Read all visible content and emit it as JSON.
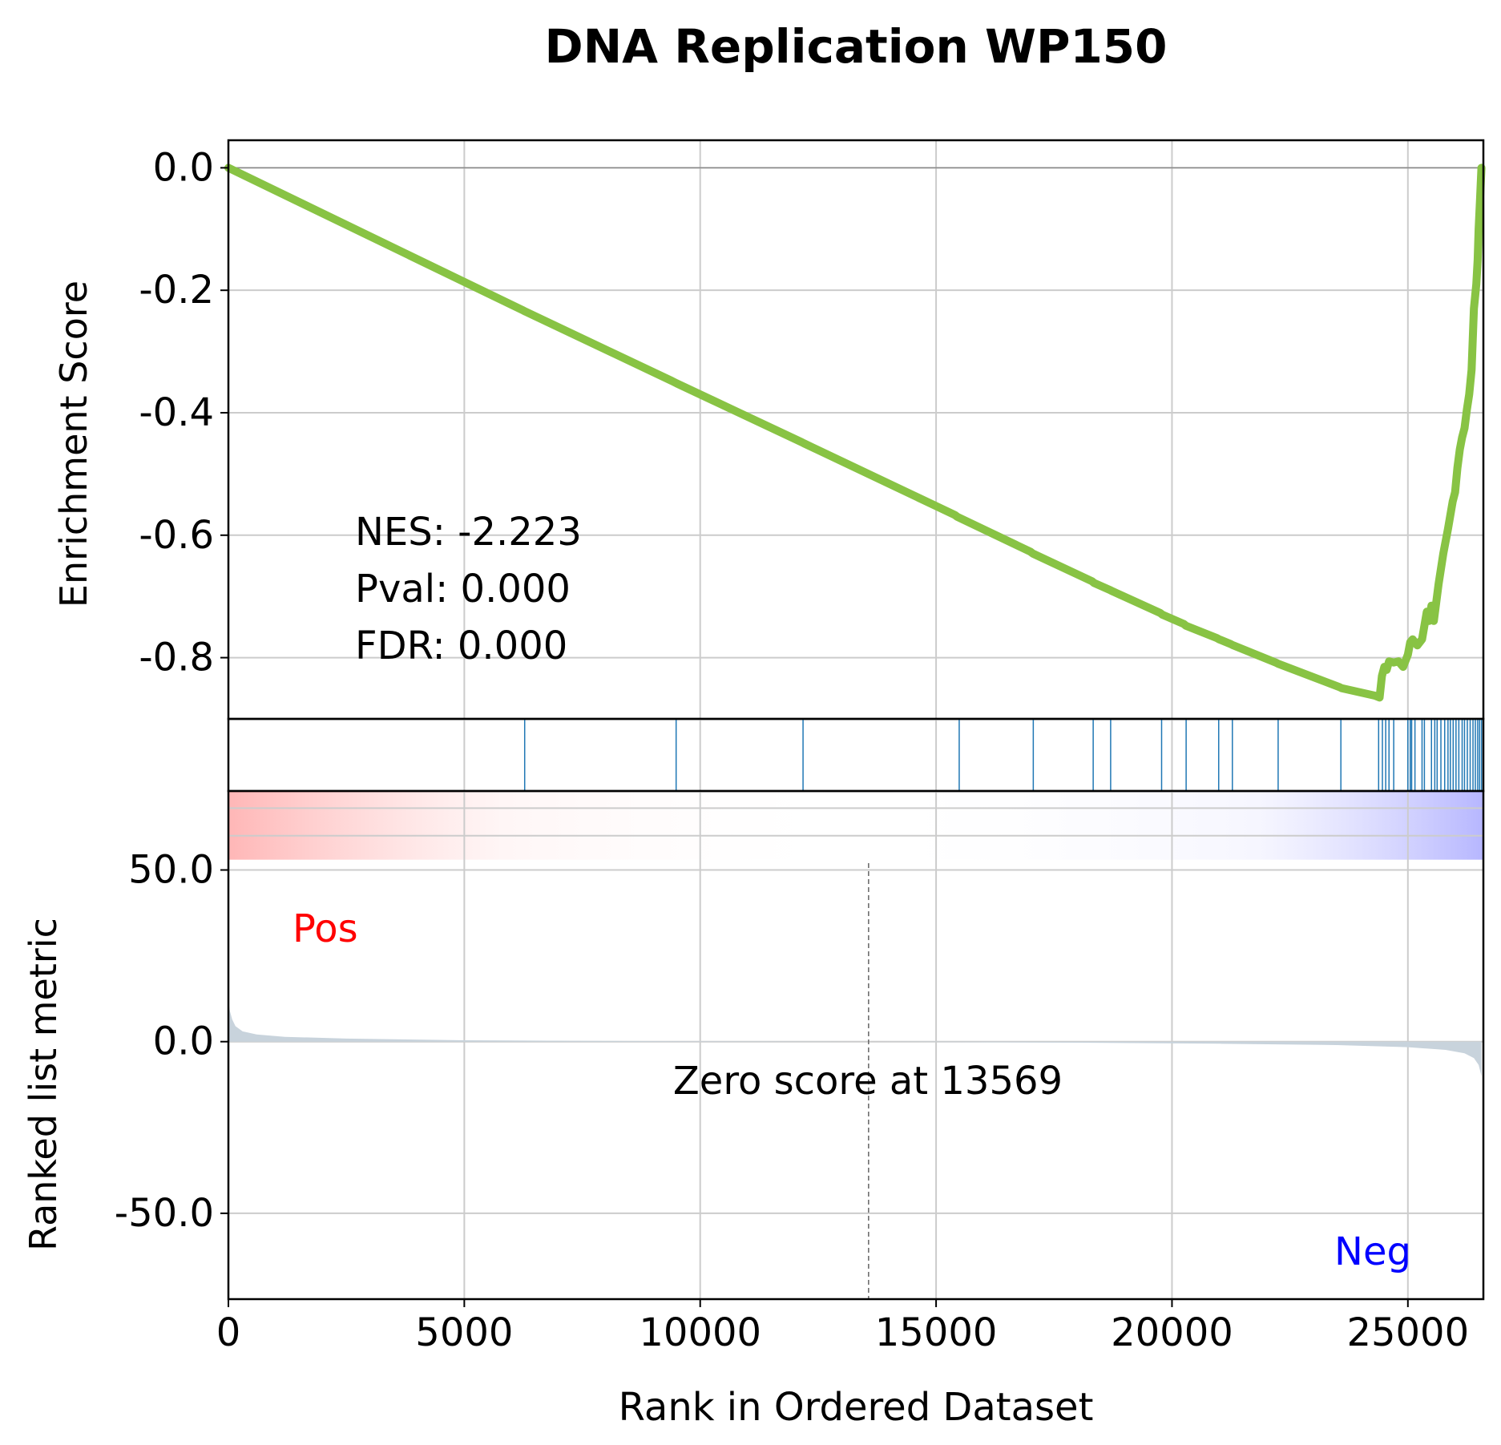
{
  "chart_data": {
    "type": "line",
    "title": "DNA Replication WP150",
    "xlabel": "Rank in Ordered Dataset",
    "xlim": [
      0,
      26600
    ],
    "x_ticks": [
      0,
      5000,
      10000,
      15000,
      20000,
      25000
    ],
    "x_tick_labels": [
      "0",
      "5000",
      "10000",
      "15000",
      "20000",
      "25000"
    ],
    "grid": true,
    "colors": {
      "es_line": "#88c344",
      "hit_line": "#1f77b4",
      "metric_fill": "#c8d3dc",
      "pos_label": "#ff0000",
      "neg_label": "#0000ff",
      "grid": "#cccccc"
    },
    "enrichment": {
      "ylabel": "Enrichment Score",
      "ylim": [
        -0.9,
        0.045
      ],
      "y_ticks": [
        0.0,
        -0.2,
        -0.4,
        -0.6,
        -0.8
      ],
      "y_tick_labels": [
        "0.0",
        "-0.2",
        "-0.4",
        "-0.6",
        "-0.8"
      ],
      "stats": [
        "NES: -2.223",
        "Pval: 0.000",
        "FDR: 0.000"
      ],
      "curve": {
        "x": [
          0,
          6250,
          6300,
          9400,
          9500,
          12150,
          12200,
          15400,
          15450,
          17000,
          17050,
          18300,
          18350,
          18700,
          18750,
          19750,
          19800,
          20250,
          20300,
          20950,
          21000,
          21250,
          21300,
          22200,
          22250,
          23550,
          23600,
          24300,
          24400,
          24450,
          24500,
          24550,
          24600,
          24700,
          24800,
          24900,
          25000,
          25050,
          25100,
          25200,
          25300,
          25400,
          25450,
          25500,
          25550,
          25650,
          25750,
          25850,
          25950,
          26000,
          26050,
          26100,
          26150,
          26200,
          26250,
          26300,
          26350,
          26400,
          26450,
          26480,
          26500,
          26530,
          26560
        ],
        "y": [
          0.0,
          -0.233,
          -0.235,
          -0.348,
          -0.352,
          -0.448,
          -0.45,
          -0.567,
          -0.57,
          -0.627,
          -0.63,
          -0.675,
          -0.678,
          -0.69,
          -0.692,
          -0.727,
          -0.73,
          -0.745,
          -0.748,
          -0.768,
          -0.77,
          -0.778,
          -0.78,
          -0.808,
          -0.81,
          -0.848,
          -0.85,
          -0.862,
          -0.865,
          -0.83,
          -0.815,
          -0.82,
          -0.806,
          -0.808,
          -0.806,
          -0.815,
          -0.795,
          -0.775,
          -0.77,
          -0.78,
          -0.77,
          -0.725,
          -0.74,
          -0.715,
          -0.74,
          -0.68,
          -0.63,
          -0.59,
          -0.545,
          -0.53,
          -0.49,
          -0.46,
          -0.44,
          -0.425,
          -0.395,
          -0.37,
          -0.33,
          -0.23,
          -0.19,
          -0.15,
          -0.1,
          -0.05,
          0.0
        ]
      }
    },
    "hits": [
      6280,
      9490,
      12180,
      15490,
      17060,
      18330,
      18700,
      19780,
      20300,
      20990,
      21280,
      22250,
      23580,
      24380,
      24460,
      24530,
      24600,
      24700,
      25000,
      25050,
      25080,
      25150,
      25300,
      25350,
      25500,
      25570,
      25620,
      25700,
      25780,
      25850,
      25900,
      25960,
      26020,
      26080,
      26150,
      26200,
      26260,
      26320,
      26380,
      26430,
      26480,
      26520,
      26560
    ],
    "metric": {
      "ylabel": "Ranked list metric",
      "ylim": [
        -75,
        73
      ],
      "y_ticks": [
        50.0,
        0.0,
        -50.0
      ],
      "y_tick_labels": [
        "50.0",
        "0.0",
        "-50.0"
      ],
      "zero_cross": 13569,
      "zero_label": "Zero score at 13569",
      "pos_label": "Pos",
      "neg_label": "Neg",
      "heat_band": [
        53,
        73
      ],
      "curve": {
        "x": [
          0,
          30,
          80,
          150,
          300,
          600,
          1200,
          2500,
          5000,
          8000,
          13569,
          18000,
          21000,
          23500,
          25000,
          25800,
          26200,
          26400,
          26500,
          26560
        ],
        "y": [
          12.0,
          9.0,
          6.5,
          4.5,
          3.0,
          2.1,
          1.4,
          0.9,
          0.4,
          0.2,
          0.0,
          -0.3,
          -0.6,
          -1.0,
          -1.6,
          -2.4,
          -3.4,
          -4.8,
          -6.8,
          -10.0
        ]
      }
    }
  }
}
